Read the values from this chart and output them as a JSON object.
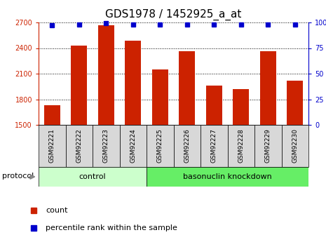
{
  "title": "GDS1978 / 1452925_a_at",
  "samples": [
    "GSM92221",
    "GSM92222",
    "GSM92223",
    "GSM92224",
    "GSM92225",
    "GSM92226",
    "GSM92227",
    "GSM92228",
    "GSM92229",
    "GSM92230"
  ],
  "counts": [
    1730,
    2430,
    2670,
    2490,
    2150,
    2360,
    1960,
    1920,
    2360,
    2020
  ],
  "percentiles": [
    97,
    98,
    99,
    98,
    98,
    98,
    98,
    98,
    98,
    98
  ],
  "ylim_left": [
    1500,
    2700
  ],
  "ylim_right": [
    0,
    100
  ],
  "yticks_left": [
    1500,
    1800,
    2100,
    2400,
    2700
  ],
  "yticks_right": [
    0,
    25,
    50,
    75,
    100
  ],
  "bar_color": "#cc2200",
  "dot_color": "#0000cc",
  "grid_color": "#000000",
  "n_control": 4,
  "n_knockdown": 6,
  "control_label": "control",
  "knockdown_label": "basonuclin knockdown",
  "protocol_label": "protocol",
  "legend_count": "count",
  "legend_percentile": "percentile rank within the sample",
  "control_color": "#ccffcc",
  "knockdown_color": "#66ee66",
  "ticklabel_bg": "#d8d8d8",
  "title_fontsize": 11,
  "tick_fontsize": 7,
  "bar_width": 0.6
}
